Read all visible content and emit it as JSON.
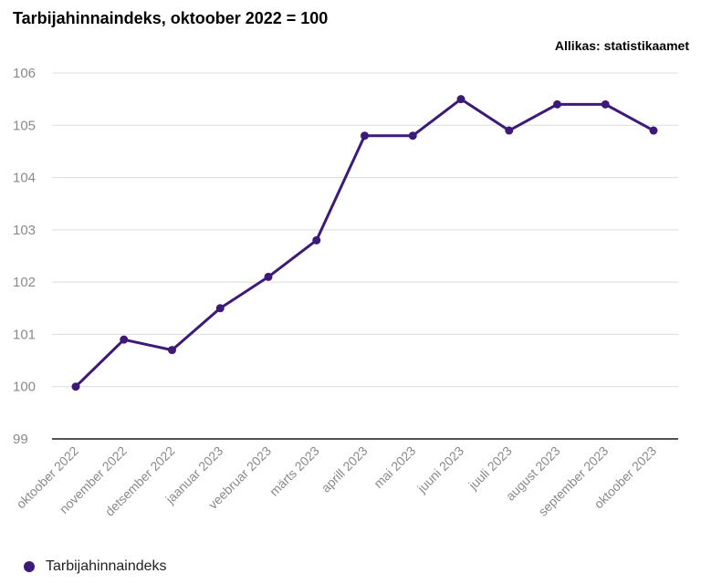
{
  "header": {
    "title": "Tarbijahinnaindeks, oktoober 2022 = 100",
    "source": "Allikas: statistikaamet"
  },
  "colors": {
    "series": "#3d1a78",
    "grid": "#dcdcdc",
    "axis": "#1a1a1a",
    "tick_text": "#8a8a8a"
  },
  "chart_data": {
    "type": "line",
    "title": "Tarbijahinnaindeks, oktoober 2022 = 100",
    "xlabel": "",
    "ylabel": "",
    "categories": [
      "oktoober 2022",
      "november 2022",
      "detsember 2022",
      "jaanuar 2023",
      "veebruar 2023",
      "märts 2023",
      "aprill 2023",
      "mai 2023",
      "juuni 2023",
      "juuli 2023",
      "august 2023",
      "september 2023",
      "oktoober 2023"
    ],
    "series": [
      {
        "name": "Tarbijahinnaindeks",
        "values": [
          100.0,
          100.9,
          100.7,
          101.5,
          102.1,
          102.8,
          104.8,
          104.8,
          105.5,
          104.9,
          105.4,
          105.4,
          104.9
        ]
      }
    ],
    "ylim": [
      99,
      106
    ],
    "yticks": [
      99,
      100,
      101,
      102,
      103,
      104,
      105,
      106
    ],
    "grid": true,
    "legend": "bottom-left"
  }
}
